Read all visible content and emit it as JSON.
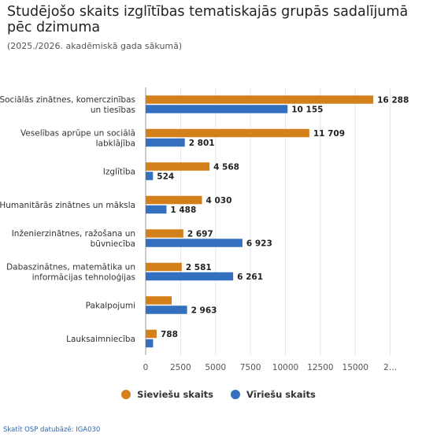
{
  "title": "Studējošo skaits izglītības tematiskajās grupās sadalījumā pēc dzimuma",
  "subtitle": "(2025./2026. akadēmiskā gada sākumā)",
  "source": "Skatīt OSP datubāzē: IGA030",
  "colors": {
    "female": "#D4801A",
    "male": "#3470BF",
    "grid": "#e6e6e6",
    "axis": "#999999"
  },
  "chart_data": {
    "type": "bar",
    "orientation": "horizontal",
    "categories": [
      [
        "Sociālās zinātnes, komerczinības",
        "un tiesības"
      ],
      [
        "Veselības aprūpe un sociālā",
        "labklājība"
      ],
      [
        "Izglītība"
      ],
      [
        "Humanitārās zinātnes un māksla"
      ],
      [
        "Inženierzinātnes, ražošana un",
        "būvniecība"
      ],
      [
        "Dabaszinātnes, matemātika un",
        "informācijas tehnoloģijas"
      ],
      [
        "Pakalpojumi"
      ],
      [
        "Lauksaimniecība"
      ]
    ],
    "series": [
      {
        "name": "Sieviešu skaits",
        "values": [
          16288,
          11709,
          4568,
          4030,
          2697,
          2581,
          1860,
          788
        ],
        "labels": [
          "16 288",
          "11 709",
          "4 568",
          "4 030",
          "2 697",
          "2 581",
          "",
          "788"
        ]
      },
      {
        "name": "Vīriešu skaits",
        "values": [
          10155,
          2801,
          524,
          1488,
          6923,
          6261,
          2963,
          530
        ],
        "labels": [
          "10 155",
          "2 801",
          "524",
          "1 488",
          "6 923",
          "6 261",
          "2 963",
          ""
        ]
      }
    ],
    "xlim": [
      0,
      20000
    ],
    "xticks": [
      "0",
      "2500",
      "5000",
      "7500",
      "10000",
      "12500",
      "15000",
      "2…"
    ],
    "grid": true,
    "legend": "bottom-center"
  }
}
